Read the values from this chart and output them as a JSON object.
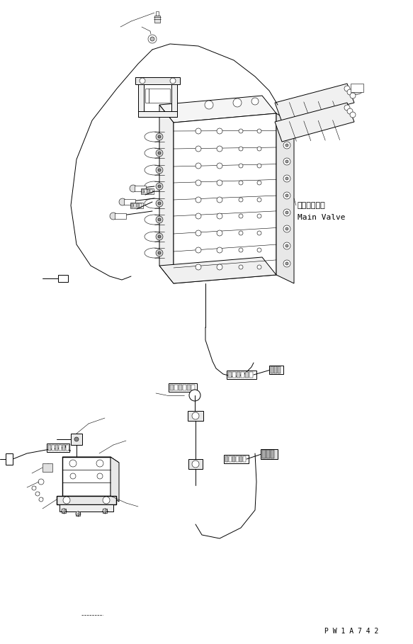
{
  "bg_color": "#ffffff",
  "line_color": "#000000",
  "fig_width": 5.83,
  "fig_height": 9.09,
  "dpi": 100,
  "label_main_valve_jp": "メインバルブ",
  "label_main_valve_en": "Main Valve",
  "watermark": "P W 1 A 7 4 2",
  "font_size_label": 8,
  "font_size_watermark": 7
}
